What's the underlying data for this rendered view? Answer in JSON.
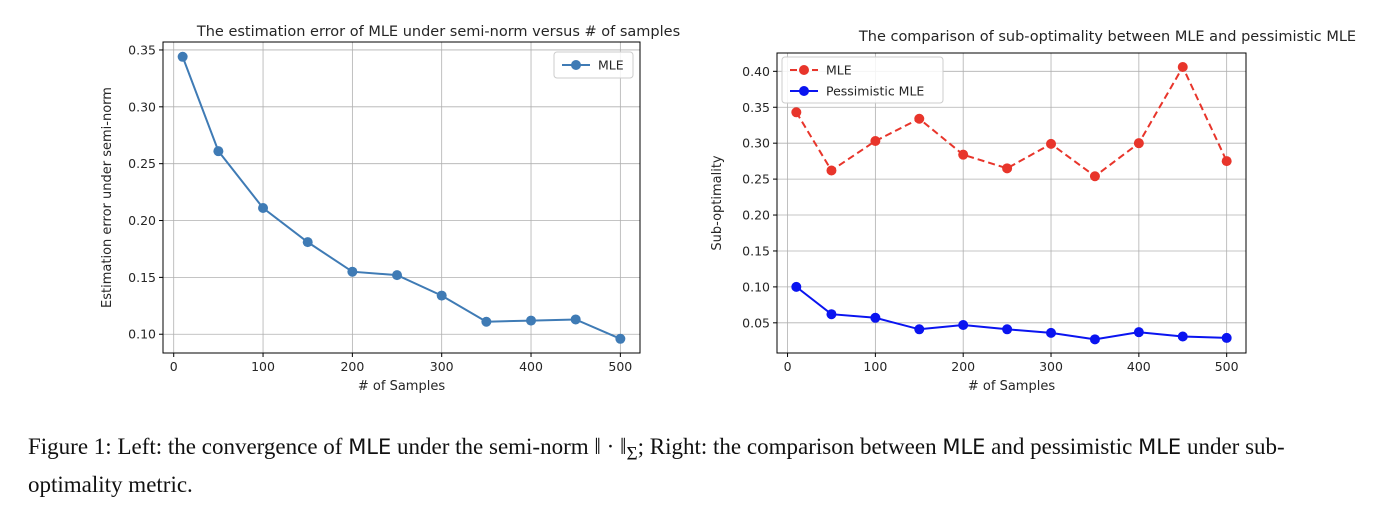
{
  "chart_data": [
    {
      "type": "line",
      "title": "The estimation error of MLE under semi-norm versus # of samples",
      "xlabel": "# of Samples",
      "ylabel": "Estimation error under semi-norm",
      "x": [
        10,
        50,
        100,
        150,
        200,
        250,
        300,
        350,
        400,
        450,
        500
      ],
      "xlim": [
        -12,
        522
      ],
      "ylim": [
        0.0835,
        0.357
      ],
      "xticks": [
        0,
        100,
        200,
        300,
        400,
        500
      ],
      "yticks": [
        0.1,
        0.15,
        0.2,
        0.25,
        0.3,
        0.35
      ],
      "ytick_labels": [
        "0.10",
        "0.15",
        "0.20",
        "0.25",
        "0.30",
        "0.35"
      ],
      "grid": true,
      "legend": "top-right",
      "series": [
        {
          "name": "MLE",
          "values": [
            0.344,
            0.261,
            0.211,
            0.181,
            0.155,
            0.152,
            0.134,
            0.111,
            0.112,
            0.113,
            0.096
          ],
          "color": "#3f7bb5",
          "dash": false
        }
      ]
    },
    {
      "type": "line",
      "title": "The comparison of sub-optimality between MLE and pessimistic MLE",
      "xlabel": "# of Samples",
      "ylabel": "Sub-optimality",
      "x": [
        10,
        50,
        100,
        150,
        200,
        250,
        300,
        350,
        400,
        450,
        500
      ],
      "xlim": [
        -12,
        522
      ],
      "ylim": [
        0.008,
        0.4255
      ],
      "xticks": [
        0,
        100,
        200,
        300,
        400,
        500
      ],
      "yticks": [
        0.05,
        0.1,
        0.15,
        0.2,
        0.25,
        0.3,
        0.35,
        0.4
      ],
      "ytick_labels": [
        "0.05",
        "0.10",
        "0.15",
        "0.20",
        "0.25",
        "0.30",
        "0.35",
        "0.40"
      ],
      "grid": true,
      "legend": "top-left",
      "series": [
        {
          "name": "MLE",
          "values": [
            0.343,
            0.262,
            0.303,
            0.334,
            0.284,
            0.265,
            0.299,
            0.254,
            0.3,
            0.406,
            0.275
          ],
          "color": "#e8352b",
          "dash": true
        },
        {
          "name": "Pessimistic MLE",
          "values": [
            0.1,
            0.062,
            0.057,
            0.041,
            0.047,
            0.041,
            0.036,
            0.027,
            0.037,
            0.031,
            0.029
          ],
          "color": "#0a14f0",
          "dash": false
        }
      ]
    }
  ],
  "caption": {
    "part1": "Figure 1: Left: the convergence of ",
    "mle1": "MLE",
    "part2": " under the semi-norm ‖ · ‖",
    "sigma": "Σ",
    "part3": "; Right: the comparison between ",
    "mle2": "MLE",
    "part4": " and pessimistic ",
    "mle3": "MLE",
    "part5": " under sub-optimality metric."
  }
}
